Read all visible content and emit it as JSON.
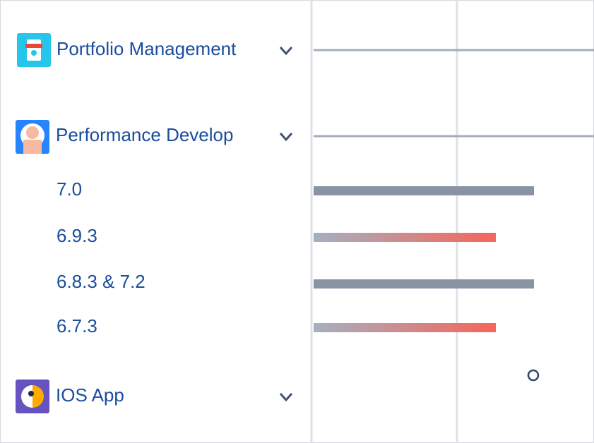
{
  "projects": [
    {
      "name": "Portfolio Management"
    },
    {
      "name": "Performance Develop",
      "releases": [
        "7.0",
        "6.9.3",
        "6.8.3 & 7.2",
        "6.7.3"
      ]
    },
    {
      "name": "IOS App"
    }
  ]
}
